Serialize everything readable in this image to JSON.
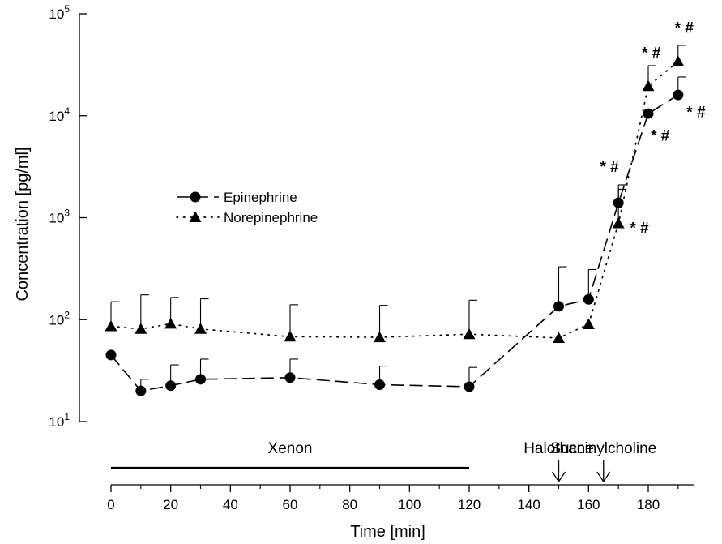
{
  "chart_data": {
    "type": "line",
    "title": "",
    "xlabel": "Time [min]",
    "ylabel": "Concentration [pg/ml]",
    "xlim": [
      0,
      195
    ],
    "ylim": [
      10,
      100000
    ],
    "yscale": "log",
    "xticks": [
      0,
      20,
      40,
      60,
      80,
      100,
      120,
      140,
      160,
      180
    ],
    "xtick_labels": [
      "0",
      "20",
      "40",
      "60",
      "80",
      "100",
      "120",
      "140",
      "160",
      "180"
    ],
    "yticks": [
      10,
      100,
      1000,
      10000,
      100000
    ],
    "ytick_labels": [
      {
        "base": "10",
        "exp": "1"
      },
      {
        "base": "10",
        "exp": "2"
      },
      {
        "base": "10",
        "exp": "3"
      },
      {
        "base": "10",
        "exp": "4"
      },
      {
        "base": "10",
        "exp": "5"
      }
    ],
    "legend_position": "upper-left",
    "grid": false,
    "series": [
      {
        "name": "Epinephrine",
        "marker": "circle",
        "line_style": "long-dash",
        "x": [
          0,
          10,
          20,
          30,
          60,
          90,
          120,
          150,
          160,
          170,
          180,
          190
        ],
        "y": [
          45,
          20,
          22.5,
          26,
          27,
          23,
          22,
          135,
          158,
          1400,
          10500,
          16000
        ],
        "error_upper": [
          null,
          26,
          36,
          41,
          41,
          35,
          34,
          330,
          310,
          2100,
          null,
          24000
        ]
      },
      {
        "name": "Norepinephrine",
        "marker": "triangle",
        "line_style": "dotted",
        "x": [
          0,
          10,
          20,
          30,
          60,
          90,
          120,
          150,
          160,
          170,
          180,
          190
        ],
        "y": [
          86,
          81,
          91,
          81,
          68,
          67,
          72,
          66,
          90,
          880,
          19500,
          34000
        ],
        "error_upper": [
          150,
          175,
          165,
          160,
          140,
          138,
          155,
          null,
          null,
          1900,
          31000,
          49000
        ]
      }
    ],
    "annotations": [
      {
        "text": "* #",
        "x": 167,
        "y": 3200
      },
      {
        "text": "* #",
        "x": 177,
        "y": 800
      },
      {
        "text": "* #",
        "x": 181,
        "y": 42000
      },
      {
        "text": "* #",
        "x": 184,
        "y": 6500
      },
      {
        "text": "* #",
        "x": 192,
        "y": 74000
      },
      {
        "text": "* #",
        "x": 196,
        "y": 11000
      }
    ],
    "phases": [
      {
        "label": "Xenon",
        "start": 0,
        "end": 120
      },
      {
        "label": "Halothane",
        "at": 150
      },
      {
        "label": "Succinylcholine",
        "at": 165
      }
    ]
  }
}
